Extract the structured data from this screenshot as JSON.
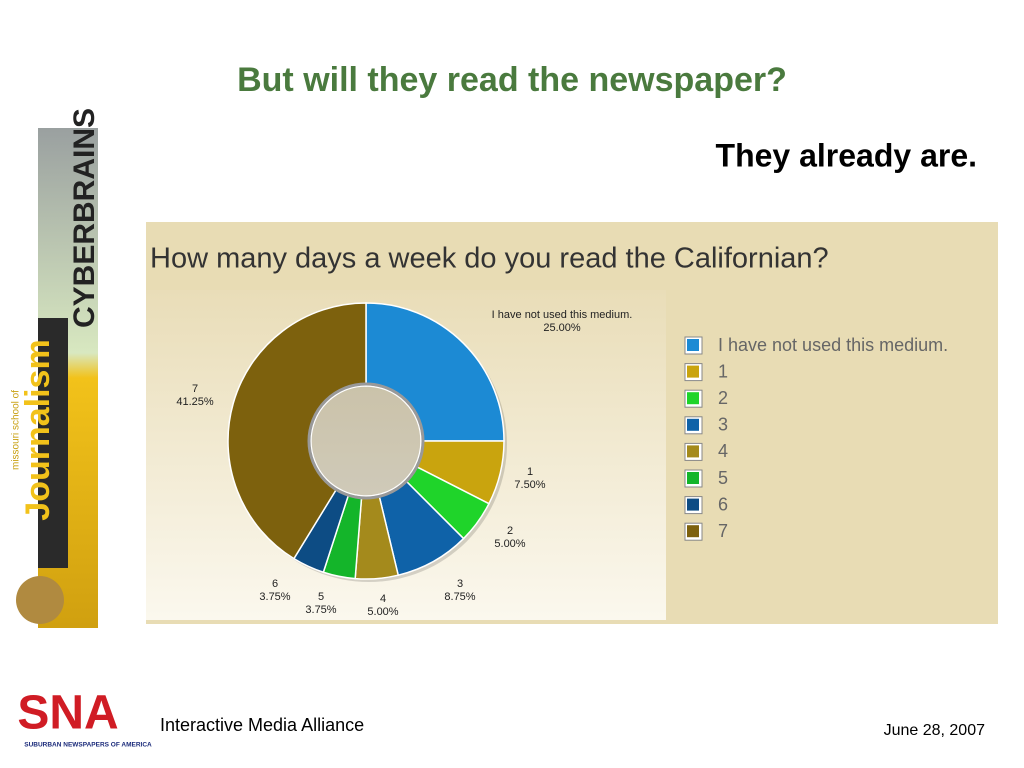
{
  "slide": {
    "title": "But will they read the newspaper?",
    "subtitle": "They already are."
  },
  "logos": {
    "cyberbrains": "CYBERBRAINS",
    "school": "missouri school of",
    "journalism": "Journalism",
    "sna": "SNA",
    "sna_full": "SUBURBAN NEWSPAPERS OF AMERICA"
  },
  "chart_data": {
    "type": "donut",
    "title": "How many days a week do you read the Californian?",
    "categories": [
      "I have not used this medium.",
      "1",
      "2",
      "3",
      "4",
      "5",
      "6",
      "7"
    ],
    "values": [
      25,
      7.5,
      5,
      8.75,
      5,
      3.75,
      3.75,
      41.25
    ],
    "value_labels": [
      "25.00%",
      "7.50%",
      "5.00%",
      "8.75%",
      "5.00%",
      "3.75%",
      "3.75%",
      "41.25%"
    ],
    "colors": [
      "#1c8ad4",
      "#c9a40e",
      "#1fd42a",
      "#0f62a8",
      "#a48a1c",
      "#14b52a",
      "#0d4c84",
      "#7d610d"
    ],
    "legend": "right"
  },
  "footer": {
    "left": "Interactive Media Alliance",
    "right": "June 28, 2007"
  }
}
